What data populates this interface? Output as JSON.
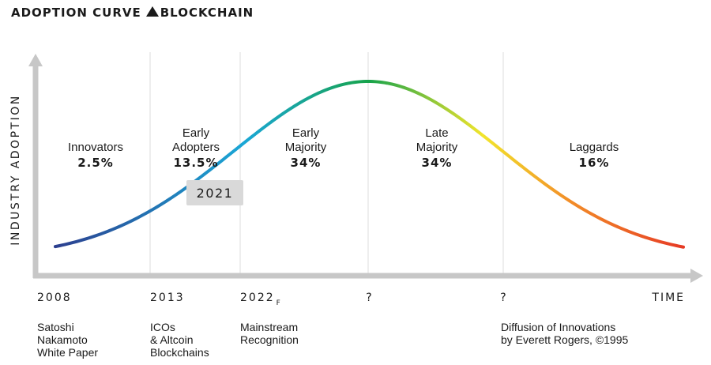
{
  "title": {
    "left": "ADOPTION CURVE",
    "icon": "triangle-up-icon",
    "right": "BLOCKCHAIN"
  },
  "chart_data": {
    "type": "area",
    "curve": "bell",
    "ylabel": "INDUSTRY ADOPTION",
    "segments": [
      {
        "name": "Innovators",
        "percent": "2.5%"
      },
      {
        "name": "Early Adopters",
        "percent": "13.5%"
      },
      {
        "name": "Early Majority",
        "percent": "34%"
      },
      {
        "name": "Late Majority",
        "percent": "34%"
      },
      {
        "name": "Laggards",
        "percent": "16%"
      }
    ],
    "x_ticks": [
      {
        "label": "2008",
        "sub": ""
      },
      {
        "label": "2013",
        "sub": ""
      },
      {
        "label": "2022",
        "sub": "F"
      },
      {
        "label": "?",
        "sub": ""
      },
      {
        "label": "?",
        "sub": ""
      },
      {
        "label": "TIME",
        "sub": ""
      }
    ],
    "marker": {
      "label": "2021"
    },
    "gradient_colors": [
      "#2c3f8f",
      "#1aa7d6",
      "#17a34a",
      "#f2e52c",
      "#f28c28",
      "#e63a25"
    ],
    "notes": [
      {
        "lines": [
          "Satoshi",
          "Nakamoto",
          "White Paper"
        ]
      },
      {
        "lines": [
          "ICOs",
          "& Altcoin",
          "Blockchains"
        ]
      },
      {
        "lines": [
          "Mainstream",
          "Recognition"
        ]
      },
      {
        "lines": [
          "Diffusion of Innovations",
          "by Everett Rogers, ©1995"
        ]
      }
    ]
  }
}
